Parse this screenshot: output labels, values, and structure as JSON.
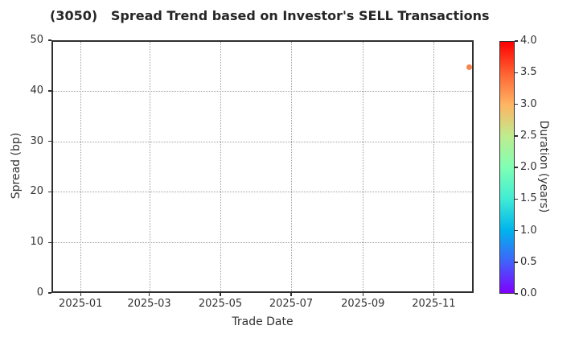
{
  "chart_data": {
    "type": "scatter",
    "title": "(3050)   Spread Trend based on Investor's SELL Transactions",
    "xlabel": "Trade Date",
    "ylabel": "Spread (bp)",
    "grid": true,
    "x_axis": {
      "ticks": [
        {
          "label": "2025-01",
          "pos": 0.069
        },
        {
          "label": "2025-03",
          "pos": 0.2315
        },
        {
          "label": "2025-05",
          "pos": 0.4
        },
        {
          "label": "2025-07",
          "pos": 0.5676
        },
        {
          "label": "2025-09",
          "pos": 0.7377
        },
        {
          "label": "2025-11",
          "pos": 0.9055
        }
      ]
    },
    "y_axis": {
      "min": 0,
      "max": 50,
      "ticks": [
        0,
        10,
        20,
        30,
        40,
        50
      ]
    },
    "points": [
      {
        "date_approx": "2025-12",
        "x_pos": 0.9886,
        "spread_bp": 44.6,
        "duration_years": 3.3,
        "color": "#f6864d"
      }
    ],
    "colorbar": {
      "label": "Duration (years)",
      "min": 0.0,
      "max": 4.0,
      "ticks": [
        "0.0",
        "0.5",
        "1.0",
        "1.5",
        "2.0",
        "2.5",
        "3.0",
        "3.5",
        "4.0"
      ],
      "gradient_bottom_to_top": [
        "#8000ff",
        "#4062fa",
        "#00b4ec",
        "#40ecd4",
        "#80ffb4",
        "#bfec8e",
        "#ffb462",
        "#ff6232",
        "#ff0000"
      ]
    },
    "colors": {
      "spine": "#2f2f2f",
      "grid": "#9f9f9f",
      "text": "#333333",
      "title": "#262626",
      "background": "#ffffff"
    }
  }
}
